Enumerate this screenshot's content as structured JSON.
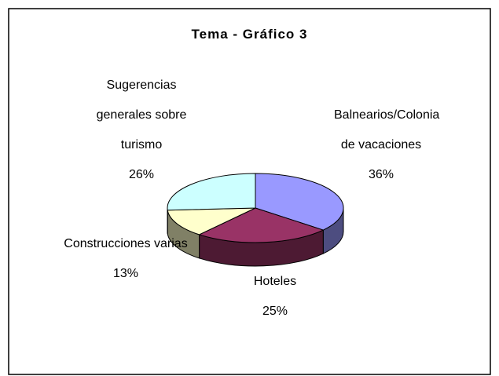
{
  "chart_data": {
    "type": "pie",
    "title": "Tema - Gráfico 3",
    "categories": [
      "Balnearios/Colonia de vacaciones",
      "Hoteles",
      "Construcciones varias",
      "Sugerencias generales sobre turismo"
    ],
    "values": [
      36,
      25,
      13,
      26
    ],
    "value_labels": [
      "36%",
      "25%",
      "13%",
      "26%"
    ],
    "colors": [
      "#9999ff",
      "#993366",
      "#ffffcc",
      "#ccffff"
    ]
  }
}
